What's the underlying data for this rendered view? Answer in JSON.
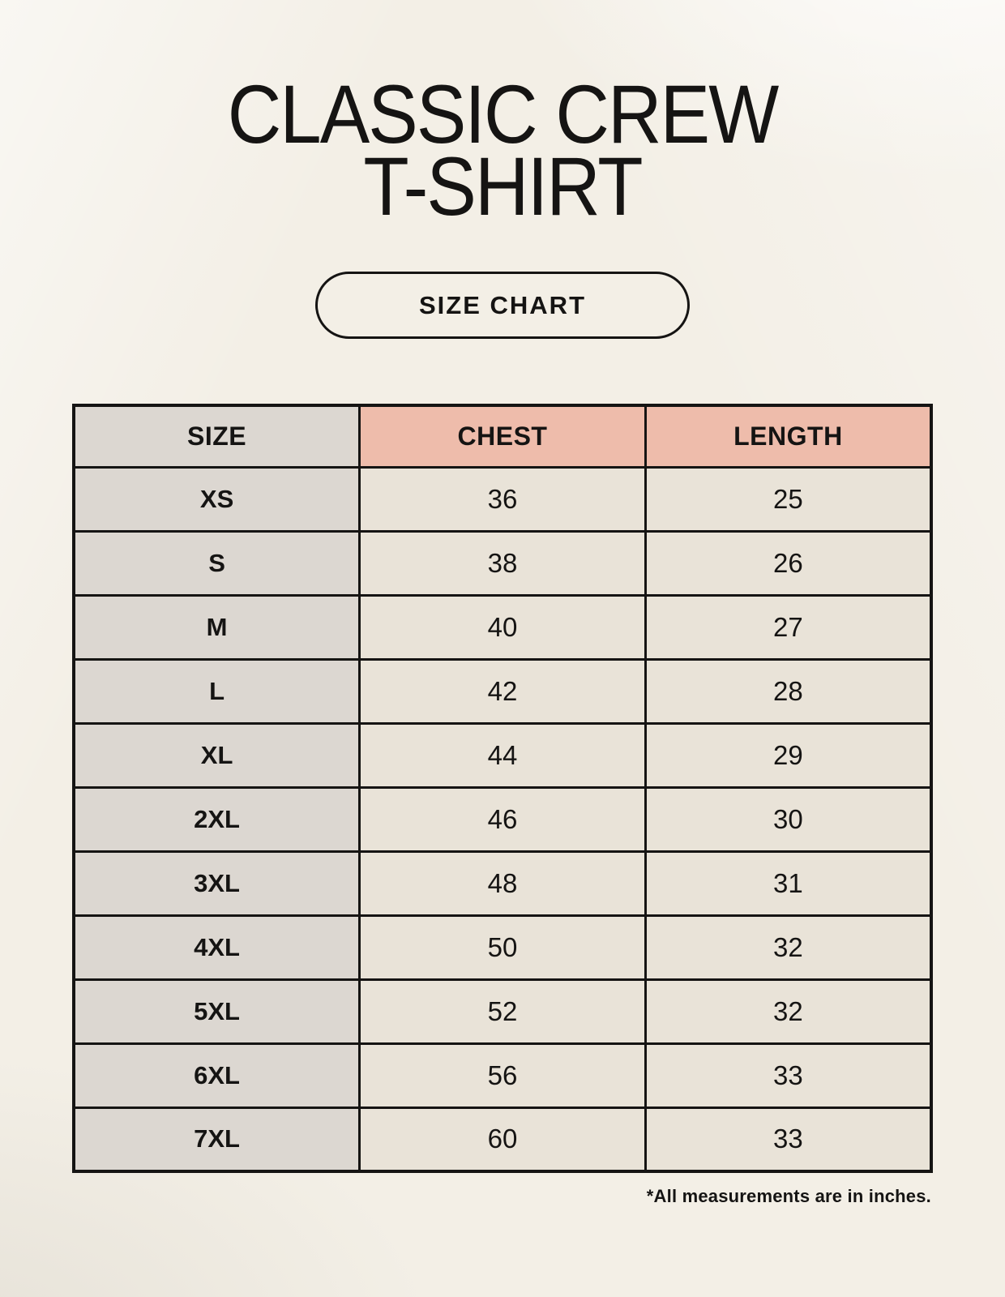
{
  "page": {
    "title": "CLASSIC CREW T-SHIRT",
    "badge_label": "SIZE CHART",
    "footnote": "*All measurements are in inches."
  },
  "colors": {
    "background": "#f3efe6",
    "header_accent": "#eebcab",
    "size_column": "#dcd7d1",
    "cell": "#e9e3d8",
    "border": "#151413",
    "ink": "#151413"
  },
  "chart_data": {
    "type": "table",
    "title": "CLASSIC CREW T-SHIRT",
    "subtitle": "SIZE CHART",
    "columns": [
      "SIZE",
      "CHEST",
      "LENGTH"
    ],
    "rows": [
      [
        "XS",
        "36",
        "25"
      ],
      [
        "S",
        "38",
        "26"
      ],
      [
        "M",
        "40",
        "27"
      ],
      [
        "L",
        "42",
        "28"
      ],
      [
        "XL",
        "44",
        "29"
      ],
      [
        "2XL",
        "46",
        "30"
      ],
      [
        "3XL",
        "48",
        "31"
      ],
      [
        "4XL",
        "50",
        "32"
      ],
      [
        "5XL",
        "52",
        "32"
      ],
      [
        "6XL",
        "56",
        "33"
      ],
      [
        "7XL",
        "60",
        "33"
      ]
    ],
    "units_note": "*All measurements are in inches."
  }
}
